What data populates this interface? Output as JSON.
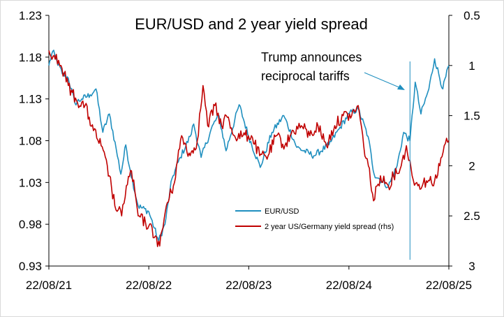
{
  "chart_data": {
    "type": "line",
    "title": "EUR/USD and 2 year yield spread",
    "annotation": "Trump announces reciprocal tariffs",
    "annotation_date": "2025-04-02",
    "x_range": [
      "2021-08-22",
      "2025-08-22"
    ],
    "x_tick_labels": [
      "22/08/21",
      "22/08/22",
      "22/08/23",
      "22/08/24",
      "22/08/25"
    ],
    "y_left": {
      "range": [
        0.93,
        1.23
      ],
      "ticks": [
        "0.93",
        "0.98",
        "1.03",
        "1.08",
        "1.13",
        "1.18",
        "1.23"
      ]
    },
    "y_right": {
      "range": [
        0.5,
        3
      ],
      "reversed": true,
      "ticks": [
        "0.5",
        "1",
        "1.5",
        "2",
        "2.5",
        "3"
      ]
    },
    "legend_position": "center-bottom",
    "grid": false,
    "series": [
      {
        "name": "EUR/USD",
        "axis": "left",
        "color": "#1f8fbf",
        "points": [
          [
            "2021-08-22",
            1.17
          ],
          [
            "2021-09-05",
            1.187
          ],
          [
            "2021-09-20",
            1.176
          ],
          [
            "2021-10-10",
            1.16
          ],
          [
            "2021-11-01",
            1.155
          ],
          [
            "2021-11-25",
            1.125
          ],
          [
            "2021-12-20",
            1.13
          ],
          [
            "2022-01-20",
            1.135
          ],
          [
            "2022-02-10",
            1.142
          ],
          [
            "2022-03-07",
            1.09
          ],
          [
            "2022-03-31",
            1.112
          ],
          [
            "2022-04-25",
            1.07
          ],
          [
            "2022-05-12",
            1.04
          ],
          [
            "2022-05-30",
            1.075
          ],
          [
            "2022-06-15",
            1.045
          ],
          [
            "2022-07-14",
            1.002
          ],
          [
            "2022-08-22",
            0.995
          ],
          [
            "2022-09-27",
            0.96
          ],
          [
            "2022-10-20",
            0.98
          ],
          [
            "2022-11-15",
            1.035
          ],
          [
            "2022-12-15",
            1.06
          ],
          [
            "2023-01-20",
            1.085
          ],
          [
            "2023-02-02",
            1.1
          ],
          [
            "2023-03-01",
            1.06
          ],
          [
            "2023-04-15",
            1.1
          ],
          [
            "2023-05-05",
            1.11
          ],
          [
            "2023-05-31",
            1.068
          ],
          [
            "2023-07-18",
            1.123
          ],
          [
            "2023-08-22",
            1.085
          ],
          [
            "2023-10-03",
            1.048
          ],
          [
            "2023-11-15",
            1.09
          ],
          [
            "2023-12-28",
            1.11
          ],
          [
            "2024-02-14",
            1.072
          ],
          [
            "2024-04-16",
            1.062
          ],
          [
            "2024-06-10",
            1.075
          ],
          [
            "2024-07-17",
            1.094
          ],
          [
            "2024-08-22",
            1.112
          ],
          [
            "2024-09-25",
            1.118
          ],
          [
            "2024-10-31",
            1.085
          ],
          [
            "2024-11-22",
            1.04
          ],
          [
            "2025-01-13",
            1.025
          ],
          [
            "2025-02-14",
            1.05
          ],
          [
            "2025-03-10",
            1.09
          ],
          [
            "2025-04-02",
            1.08
          ],
          [
            "2025-04-21",
            1.15
          ],
          [
            "2025-05-12",
            1.112
          ],
          [
            "2025-06-10",
            1.142
          ],
          [
            "2025-07-01",
            1.178
          ],
          [
            "2025-07-31",
            1.142
          ],
          [
            "2025-08-22",
            1.17
          ]
        ]
      },
      {
        "name": "2 year US/Germany yield spread (rhs)",
        "axis": "right",
        "color": "#c00000",
        "points": [
          [
            "2021-08-22",
            0.85
          ],
          [
            "2021-09-10",
            0.9
          ],
          [
            "2021-10-05",
            1.0
          ],
          [
            "2021-11-01",
            1.2
          ],
          [
            "2021-12-01",
            1.35
          ],
          [
            "2022-01-01",
            1.4
          ],
          [
            "2022-02-01",
            1.65
          ],
          [
            "2022-03-01",
            1.8
          ],
          [
            "2022-03-31",
            2.1
          ],
          [
            "2022-04-20",
            2.4
          ],
          [
            "2022-05-15",
            2.5
          ],
          [
            "2022-06-01",
            2.2
          ],
          [
            "2022-06-20",
            2.05
          ],
          [
            "2022-07-14",
            2.5
          ],
          [
            "2022-08-22",
            2.6
          ],
          [
            "2022-09-15",
            2.7
          ],
          [
            "2022-10-01",
            2.8
          ],
          [
            "2022-10-25",
            2.4
          ],
          [
            "2022-11-20",
            2.2
          ],
          [
            "2022-12-20",
            1.7
          ],
          [
            "2023-01-20",
            1.9
          ],
          [
            "2023-02-15",
            1.75
          ],
          [
            "2023-03-08",
            1.2
          ],
          [
            "2023-03-25",
            1.6
          ],
          [
            "2023-04-20",
            1.4
          ],
          [
            "2023-05-15",
            1.6
          ],
          [
            "2023-06-01",
            1.5
          ],
          [
            "2023-07-01",
            1.7
          ],
          [
            "2023-08-01",
            1.7
          ],
          [
            "2023-09-01",
            1.7
          ],
          [
            "2023-10-01",
            1.9
          ],
          [
            "2023-11-01",
            1.9
          ],
          [
            "2023-12-01",
            1.7
          ],
          [
            "2024-01-01",
            1.8
          ],
          [
            "2024-02-01",
            1.65
          ],
          [
            "2024-03-01",
            1.6
          ],
          [
            "2024-04-01",
            1.7
          ],
          [
            "2024-05-01",
            1.6
          ],
          [
            "2024-06-01",
            1.8
          ],
          [
            "2024-07-01",
            1.6
          ],
          [
            "2024-08-01",
            1.5
          ],
          [
            "2024-09-01",
            1.5
          ],
          [
            "2024-09-25",
            1.4
          ],
          [
            "2024-10-15",
            1.8
          ],
          [
            "2024-11-01",
            2.0
          ],
          [
            "2024-11-20",
            2.35
          ],
          [
            "2024-12-15",
            2.1
          ],
          [
            "2025-01-13",
            2.2
          ],
          [
            "2025-02-01",
            2.1
          ],
          [
            "2025-03-01",
            2.0
          ],
          [
            "2025-03-20",
            1.8
          ],
          [
            "2025-04-10",
            2.1
          ],
          [
            "2025-05-01",
            2.2
          ],
          [
            "2025-06-01",
            2.15
          ],
          [
            "2025-07-01",
            2.15
          ],
          [
            "2025-07-20",
            2.0
          ],
          [
            "2025-08-05",
            1.8
          ],
          [
            "2025-08-22",
            1.75
          ]
        ]
      }
    ]
  }
}
